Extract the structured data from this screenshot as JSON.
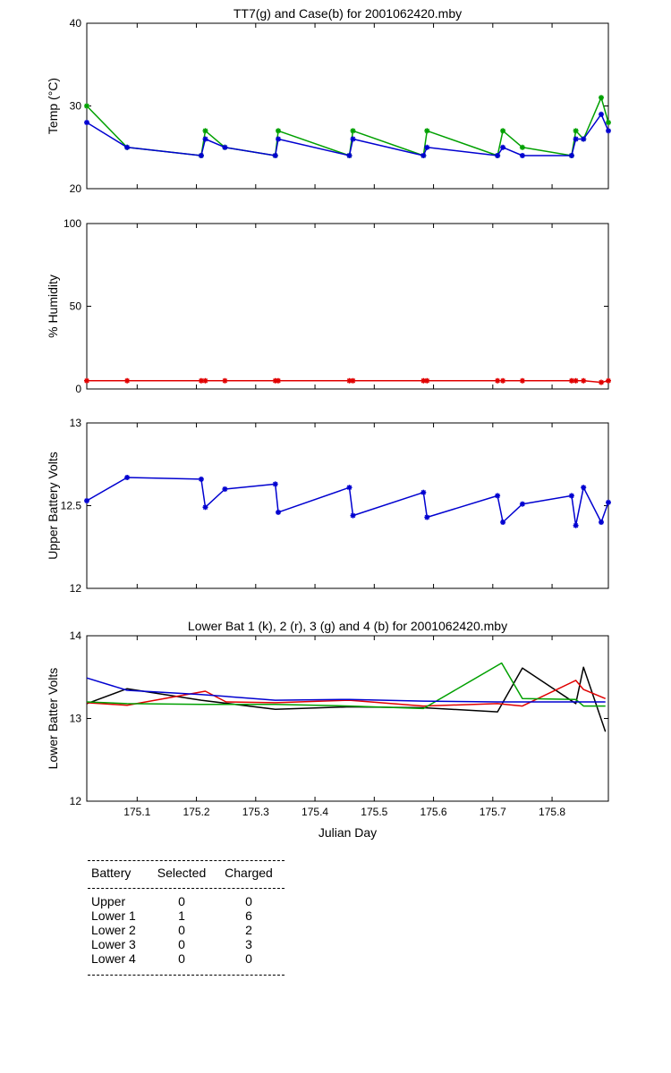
{
  "chart_data": [
    {
      "type": "line",
      "title": "TT7(g) and Case(b) for 2001062420.mby",
      "xlabel": "",
      "ylabel": "Temp  (°C)",
      "xlim": [
        175.015,
        175.895
      ],
      "ylim": [
        20,
        40
      ],
      "yticks": [
        "20",
        "30",
        "40"
      ],
      "xticks": [],
      "markers": true,
      "series": [
        {
          "color": "#00a000",
          "x": [
            175.015,
            175.083,
            175.208,
            175.215,
            175.248,
            175.333,
            175.338,
            175.458,
            175.464,
            175.583,
            175.589,
            175.708,
            175.717,
            175.75,
            175.833,
            175.84,
            175.853,
            175.883,
            175.895
          ],
          "y": [
            30,
            25,
            24,
            27,
            25,
            24,
            27,
            24,
            27,
            24,
            27,
            24,
            27,
            25,
            24,
            27,
            26,
            31,
            28
          ]
        },
        {
          "color": "#0000d0",
          "x": [
            175.015,
            175.083,
            175.208,
            175.215,
            175.248,
            175.333,
            175.338,
            175.458,
            175.464,
            175.583,
            175.589,
            175.708,
            175.717,
            175.75,
            175.833,
            175.84,
            175.853,
            175.883,
            175.895
          ],
          "y": [
            28,
            25,
            24,
            26,
            25,
            24,
            26,
            24,
            26,
            24,
            25,
            24,
            25,
            24,
            24,
            26,
            26,
            29,
            27
          ]
        }
      ]
    },
    {
      "type": "line",
      "title": "",
      "xlabel": "",
      "ylabel": "% Humidity",
      "xlim": [
        175.015,
        175.895
      ],
      "ylim": [
        0,
        100
      ],
      "yticks": [
        "0",
        "50",
        "100"
      ],
      "xticks": [],
      "markers": true,
      "series": [
        {
          "color": "#e00000",
          "x": [
            175.015,
            175.083,
            175.208,
            175.215,
            175.248,
            175.333,
            175.338,
            175.458,
            175.464,
            175.583,
            175.589,
            175.708,
            175.717,
            175.75,
            175.833,
            175.84,
            175.853,
            175.883,
            175.895
          ],
          "y": [
            5,
            5,
            5,
            5,
            5,
            5,
            5,
            5,
            5,
            5,
            5,
            5,
            5,
            5,
            5,
            5,
            5,
            4,
            5
          ]
        }
      ]
    },
    {
      "type": "line",
      "title": "",
      "xlabel": "",
      "ylabel": "Upper Battery Volts",
      "xlim": [
        175.015,
        175.895
      ],
      "ylim": [
        12,
        13
      ],
      "yticks": [
        "12",
        "12.5",
        "13"
      ],
      "xticks": [],
      "markers": true,
      "series": [
        {
          "color": "#0000d0",
          "x": [
            175.015,
            175.083,
            175.208,
            175.215,
            175.248,
            175.333,
            175.338,
            175.458,
            175.464,
            175.583,
            175.589,
            175.708,
            175.717,
            175.75,
            175.833,
            175.84,
            175.853,
            175.883,
            175.895
          ],
          "y": [
            12.53,
            12.67,
            12.66,
            12.49,
            12.6,
            12.63,
            12.46,
            12.61,
            12.44,
            12.58,
            12.43,
            12.56,
            12.4,
            12.51,
            12.56,
            12.38,
            12.61,
            12.4,
            12.52
          ]
        }
      ]
    },
    {
      "type": "line",
      "title": "Lower Bat 1 (k), 2 (r), 3 (g) and 4 (b) for 2001062420.mby",
      "xlabel": "Julian Day",
      "ylabel": "Lower Batter Volts",
      "xlim": [
        175.015,
        175.895
      ],
      "ylim": [
        12,
        14
      ],
      "yticks": [
        "12",
        "13",
        "14"
      ],
      "xticks": [
        "175.1",
        "175.2",
        "175.3",
        "175.4",
        "175.5",
        "175.6",
        "175.7",
        "175.8"
      ],
      "markers": false,
      "series": [
        {
          "color": "#000000",
          "x": [
            175.015,
            175.083,
            175.208,
            175.333,
            175.458,
            175.583,
            175.708,
            175.75,
            175.84,
            175.853,
            175.89
          ],
          "y": [
            13.18,
            13.36,
            13.22,
            13.11,
            13.14,
            13.13,
            13.08,
            13.61,
            13.18,
            13.62,
            12.84
          ]
        },
        {
          "color": "#e00000",
          "x": [
            175.015,
            175.083,
            175.215,
            175.25,
            175.333,
            175.458,
            175.583,
            175.708,
            175.75,
            175.84,
            175.853,
            175.89
          ],
          "y": [
            13.19,
            13.16,
            13.33,
            13.2,
            13.19,
            13.22,
            13.15,
            13.18,
            13.15,
            13.46,
            13.35,
            13.24
          ]
        },
        {
          "color": "#00a000",
          "x": [
            175.015,
            175.083,
            175.208,
            175.333,
            175.458,
            175.583,
            175.715,
            175.75,
            175.84,
            175.853,
            175.89
          ],
          "y": [
            13.2,
            13.18,
            13.17,
            13.17,
            13.15,
            13.12,
            13.67,
            13.24,
            13.23,
            13.15,
            13.15
          ]
        },
        {
          "color": "#0000d0",
          "x": [
            175.015,
            175.083,
            175.208,
            175.333,
            175.458,
            175.583,
            175.708,
            175.84,
            175.89
          ],
          "y": [
            13.49,
            13.34,
            13.29,
            13.22,
            13.23,
            13.21,
            13.2,
            13.2,
            13.2
          ]
        }
      ]
    }
  ],
  "table": {
    "headers": [
      "Battery",
      "Selected",
      "Charged"
    ],
    "rows": [
      [
        "Upper",
        "0",
        "0"
      ],
      [
        "Lower 1",
        "1",
        "6"
      ],
      [
        "Lower 2",
        "0",
        "2"
      ],
      [
        "Lower 3",
        "0",
        "3"
      ],
      [
        "Lower 4",
        "0",
        "0"
      ]
    ]
  }
}
